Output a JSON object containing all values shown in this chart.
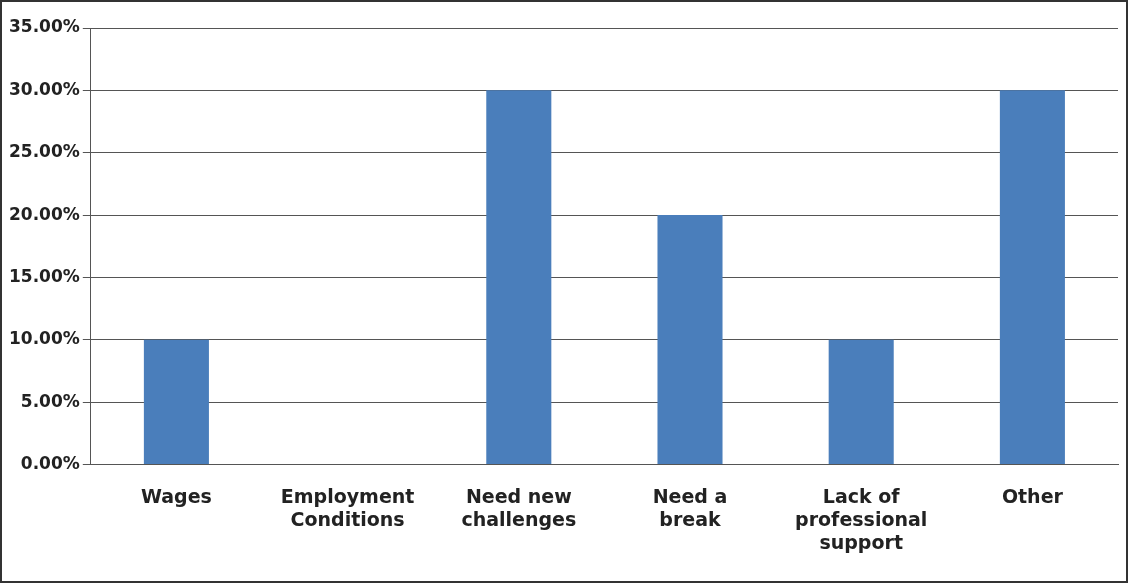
{
  "chart_data": {
    "type": "bar",
    "categories": [
      "Wages",
      "Employment Conditions",
      "Need new challenges",
      "Need a break",
      "Lack of professional support",
      "Other"
    ],
    "values": [
      10,
      0,
      30,
      20,
      10,
      30
    ],
    "color": "#4a7ebb",
    "ylim": [
      0,
      35
    ],
    "yticks": [
      {
        "value": 0,
        "label": "0.00%"
      },
      {
        "value": 5,
        "label": "5.00%"
      },
      {
        "value": 10,
        "label": "10.00%"
      },
      {
        "value": 15,
        "label": "15.00%"
      },
      {
        "value": 20,
        "label": "20.00%"
      },
      {
        "value": 25,
        "label": "25.00%"
      },
      {
        "value": 30,
        "label": "30.00%"
      },
      {
        "value": 35,
        "label": "35.00%"
      }
    ],
    "grid": "y",
    "legend": false
  }
}
